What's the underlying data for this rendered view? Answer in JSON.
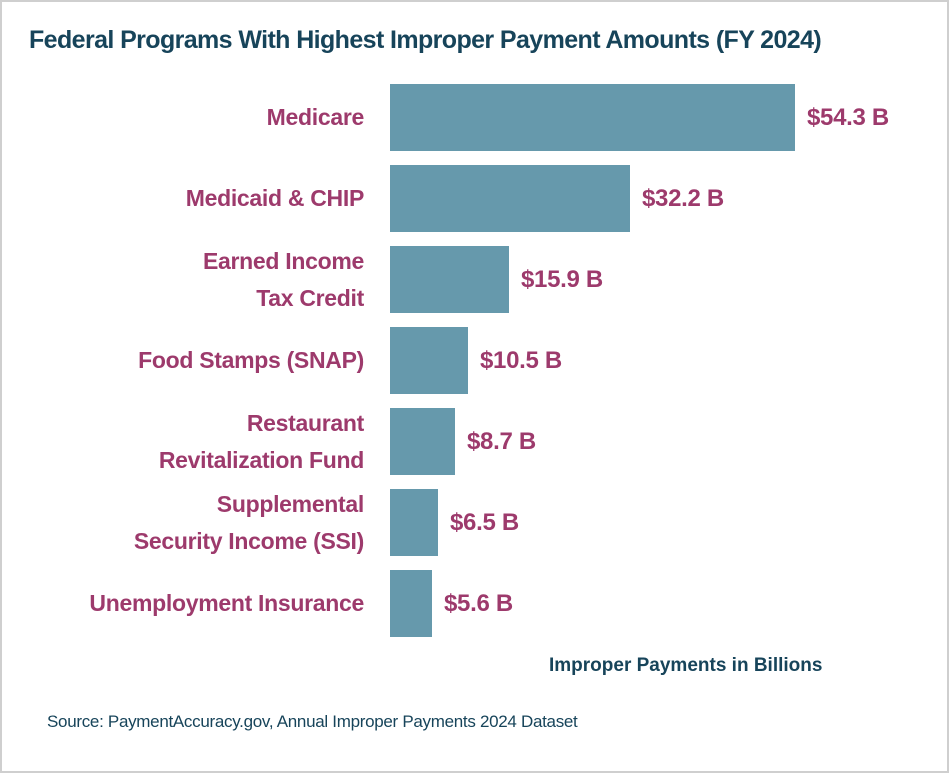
{
  "chart": {
    "title": "Federal Programs With Highest Improper Payment Amounts (FY 2024)",
    "axis_caption": "Improper Payments in Billions",
    "source": "Source: PaymentAccuracy.gov, Annual Improper Payments 2024 Dataset"
  },
  "chart_data": {
    "type": "bar",
    "orientation": "horizontal",
    "title": "Federal Programs With Highest Improper Payment Amounts (FY 2024)",
    "categories": [
      "Medicare",
      "Medicaid & CHIP",
      "Earned Income Tax Credit",
      "Food Stamps (SNAP)",
      "Restaurant Revitalization Fund",
      "Supplemental Security Income (SSI)",
      "Unemployment Insurance"
    ],
    "category_lines": [
      [
        "Medicare"
      ],
      [
        "Medicaid & CHIP"
      ],
      [
        "Earned Income",
        "Tax Credit"
      ],
      [
        "Food Stamps (SNAP)"
      ],
      [
        "Restaurant",
        "Revitalization Fund"
      ],
      [
        "Supplemental",
        "Security Income (SSI)"
      ],
      [
        "Unemployment Insurance"
      ]
    ],
    "values": [
      54.3,
      32.2,
      15.9,
      10.5,
      8.7,
      6.5,
      5.6
    ],
    "value_labels": [
      "$54.3 B",
      "$32.2 B",
      "$15.9 B",
      "$10.5 B",
      "$8.7 B",
      "$6.5 B",
      "$5.6 B"
    ],
    "xlabel": "Improper Payments in Billions",
    "xlim": [
      0,
      57
    ],
    "grid": false,
    "legend": false,
    "bar_sort": "descending",
    "source": "Source: PaymentAccuracy.gov, Annual Improper Payments 2024 Dataset",
    "colors": {
      "bar": "#6699ac",
      "category_label": "#9d3a6c",
      "value_label": "#9d3a6c",
      "title": "#17445a",
      "caption": "#17445a",
      "source_text": "#17445a",
      "background": "#ffffff",
      "border": "#cfcfcf"
    }
  }
}
